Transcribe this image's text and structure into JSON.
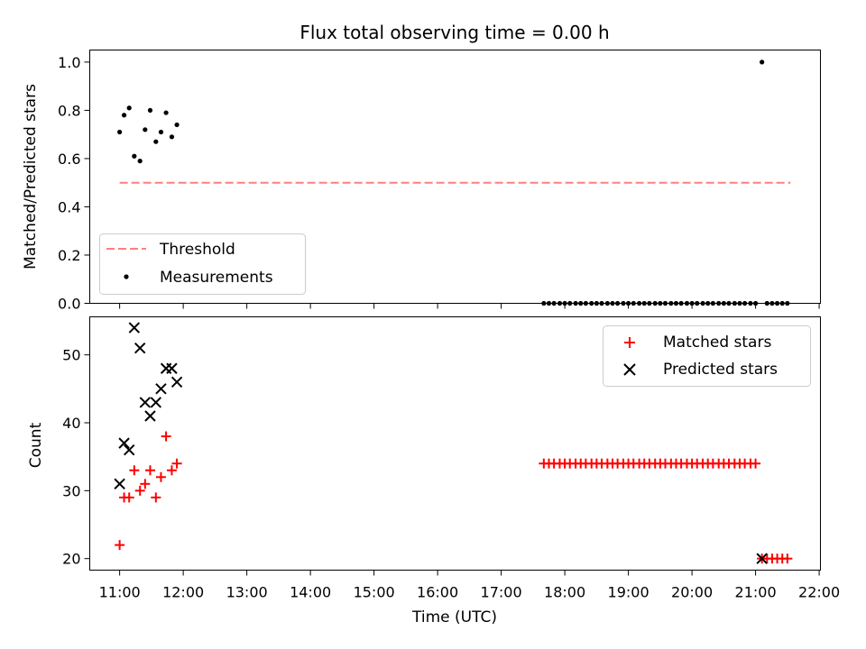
{
  "chart_data": [
    {
      "type": "scatter",
      "title": "Flux total observing time = 0.00 h",
      "ylabel": "Matched/Predicted stars",
      "xlabel": "",
      "x_range": [
        10.53,
        22.02
      ],
      "ylim": [
        0.0,
        1.05
      ],
      "x_ticks": [
        "11:00",
        "12:00",
        "13:00",
        "14:00",
        "15:00",
        "16:00",
        "17:00",
        "18:00",
        "19:00",
        "20:00",
        "21:00",
        "22:00"
      ],
      "y_ticks": [
        "0.0",
        "0.2",
        "0.4",
        "0.6",
        "0.8",
        "1.0"
      ],
      "grid": false,
      "legend_placement": "lower-left",
      "threshold": {
        "name": "Threshold",
        "value": 0.5,
        "x_range": [
          11.0,
          21.55
        ],
        "color": "#ff7f7f",
        "style": "dashed"
      },
      "series": [
        {
          "name": "Measurements",
          "marker": "dot",
          "color": "#000000",
          "points": [
            [
              11.0,
              0.71
            ],
            [
              11.07,
              0.78
            ],
            [
              11.15,
              0.81
            ],
            [
              11.23,
              0.61
            ],
            [
              11.32,
              0.59
            ],
            [
              11.4,
              0.72
            ],
            [
              11.48,
              0.8
            ],
            [
              11.57,
              0.67
            ],
            [
              11.65,
              0.71
            ],
            [
              11.73,
              0.79
            ],
            [
              11.82,
              0.69
            ],
            [
              11.9,
              0.74
            ],
            [
              17.67,
              0.0
            ],
            [
              17.75,
              0.0
            ],
            [
              17.83,
              0.0
            ],
            [
              17.92,
              0.0
            ],
            [
              18.0,
              0.0
            ],
            [
              18.08,
              0.0
            ],
            [
              18.17,
              0.0
            ],
            [
              18.25,
              0.0
            ],
            [
              18.33,
              0.0
            ],
            [
              18.42,
              0.0
            ],
            [
              18.5,
              0.0
            ],
            [
              18.58,
              0.0
            ],
            [
              18.67,
              0.0
            ],
            [
              18.75,
              0.0
            ],
            [
              18.83,
              0.0
            ],
            [
              18.92,
              0.0
            ],
            [
              19.0,
              0.0
            ],
            [
              19.08,
              0.0
            ],
            [
              19.17,
              0.0
            ],
            [
              19.25,
              0.0
            ],
            [
              19.33,
              0.0
            ],
            [
              19.42,
              0.0
            ],
            [
              19.5,
              0.0
            ],
            [
              19.58,
              0.0
            ],
            [
              19.67,
              0.0
            ],
            [
              19.75,
              0.0
            ],
            [
              19.83,
              0.0
            ],
            [
              19.92,
              0.0
            ],
            [
              20.0,
              0.0
            ],
            [
              20.08,
              0.0
            ],
            [
              20.17,
              0.0
            ],
            [
              20.25,
              0.0
            ],
            [
              20.33,
              0.0
            ],
            [
              20.42,
              0.0
            ],
            [
              20.5,
              0.0
            ],
            [
              20.58,
              0.0
            ],
            [
              20.67,
              0.0
            ],
            [
              20.75,
              0.0
            ],
            [
              20.83,
              0.0
            ],
            [
              20.92,
              0.0
            ],
            [
              21.0,
              0.0
            ],
            [
              21.1,
              1.0
            ],
            [
              21.18,
              0.0
            ],
            [
              21.26,
              0.0
            ],
            [
              21.34,
              0.0
            ],
            [
              21.42,
              0.0
            ],
            [
              21.5,
              0.0
            ]
          ]
        }
      ]
    },
    {
      "type": "scatter",
      "title": "",
      "ylabel": "Count",
      "xlabel": "Time (UTC)",
      "x_range": [
        10.53,
        22.02
      ],
      "ylim": [
        18.3,
        55.6
      ],
      "x_ticks": [
        "11:00",
        "12:00",
        "13:00",
        "14:00",
        "15:00",
        "16:00",
        "17:00",
        "18:00",
        "19:00",
        "20:00",
        "21:00",
        "22:00"
      ],
      "y_ticks": [
        "20",
        "30",
        "40",
        "50"
      ],
      "grid": false,
      "legend_placement": "upper-right",
      "series": [
        {
          "name": "Matched stars",
          "marker": "plus",
          "color": "#ff0000",
          "points": [
            [
              11.0,
              22
            ],
            [
              11.07,
              29
            ],
            [
              11.15,
              29
            ],
            [
              11.23,
              33
            ],
            [
              11.32,
              30
            ],
            [
              11.4,
              31
            ],
            [
              11.48,
              33
            ],
            [
              11.57,
              29
            ],
            [
              11.65,
              32
            ],
            [
              11.73,
              38
            ],
            [
              11.82,
              33
            ],
            [
              11.9,
              34
            ],
            [
              17.67,
              34
            ],
            [
              17.75,
              34
            ],
            [
              17.83,
              34
            ],
            [
              17.92,
              34
            ],
            [
              18.0,
              34
            ],
            [
              18.08,
              34
            ],
            [
              18.17,
              34
            ],
            [
              18.25,
              34
            ],
            [
              18.33,
              34
            ],
            [
              18.42,
              34
            ],
            [
              18.5,
              34
            ],
            [
              18.58,
              34
            ],
            [
              18.67,
              34
            ],
            [
              18.75,
              34
            ],
            [
              18.83,
              34
            ],
            [
              18.92,
              34
            ],
            [
              19.0,
              34
            ],
            [
              19.08,
              34
            ],
            [
              19.17,
              34
            ],
            [
              19.25,
              34
            ],
            [
              19.33,
              34
            ],
            [
              19.42,
              34
            ],
            [
              19.5,
              34
            ],
            [
              19.58,
              34
            ],
            [
              19.67,
              34
            ],
            [
              19.75,
              34
            ],
            [
              19.83,
              34
            ],
            [
              19.92,
              34
            ],
            [
              20.0,
              34
            ],
            [
              20.08,
              34
            ],
            [
              20.17,
              34
            ],
            [
              20.25,
              34
            ],
            [
              20.33,
              34
            ],
            [
              20.42,
              34
            ],
            [
              20.5,
              34
            ],
            [
              20.58,
              34
            ],
            [
              20.67,
              34
            ],
            [
              20.75,
              34
            ],
            [
              20.83,
              34
            ],
            [
              20.92,
              34
            ],
            [
              21.0,
              34
            ],
            [
              21.1,
              20
            ],
            [
              21.18,
              20
            ],
            [
              21.26,
              20
            ],
            [
              21.34,
              20
            ],
            [
              21.42,
              20
            ],
            [
              21.5,
              20
            ]
          ]
        },
        {
          "name": "Predicted stars",
          "marker": "x",
          "color": "#000000",
          "points": [
            [
              11.0,
              31
            ],
            [
              11.07,
              37
            ],
            [
              11.15,
              36
            ],
            [
              11.23,
              54
            ],
            [
              11.32,
              51
            ],
            [
              11.4,
              43
            ],
            [
              11.48,
              41
            ],
            [
              11.57,
              43
            ],
            [
              11.65,
              45
            ],
            [
              11.73,
              48
            ],
            [
              11.82,
              48
            ],
            [
              11.9,
              46
            ],
            [
              21.1,
              20
            ]
          ]
        }
      ]
    }
  ]
}
